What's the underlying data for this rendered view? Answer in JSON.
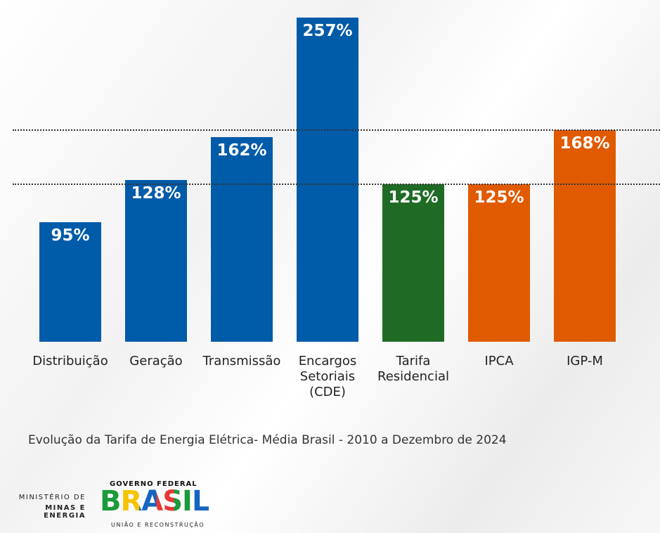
{
  "chart_data": {
    "type": "bar",
    "categories": [
      "Distribuição",
      "Geração",
      "Transmissão",
      "Encargos Setoriais (CDE)",
      "Tarifa Residencial",
      "IPCA",
      "IGP-M"
    ],
    "values": [
      95,
      128,
      162,
      257,
      125,
      125,
      168
    ],
    "value_labels": [
      "95%",
      "128%",
      "162%",
      "257%",
      "125%",
      "125%",
      "168%"
    ],
    "colors": [
      "#005ba8",
      "#005ba8",
      "#005ba8",
      "#005ba8",
      "#1f6b25",
      "#e05a00",
      "#e05a00"
    ],
    "caption": "Evolução da Tarifa de Energia Elétrica- Média Brasil - 2010 a Dezembro de 2024"
  },
  "footer": {
    "ministry_line1": "MINISTÉRIO DE",
    "ministry_line2": "MINAS E ENERGIA",
    "gov_top": "GOVERNO FEDERAL",
    "gov_logo": "BRASIL",
    "gov_bottom": "UNIÃO E RECONSTRUÇÃO"
  }
}
